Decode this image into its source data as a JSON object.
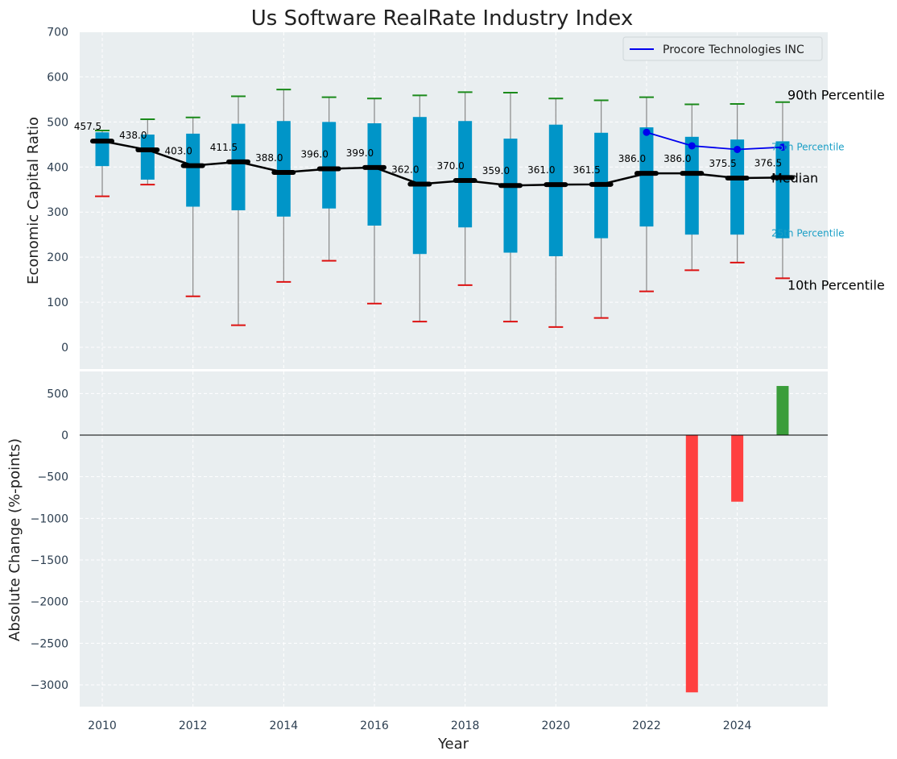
{
  "chart_data": [
    {
      "type": "box",
      "title": "Us Software RealRate Industry Index",
      "ylabel": "Economic Capital Ratio",
      "ylim": [
        -50,
        700
      ],
      "yticks": [
        0,
        100,
        200,
        300,
        400,
        500,
        600,
        700
      ],
      "grid": true,
      "legend": {
        "placement": "top-right",
        "entries": [
          "Procore Technologies INC"
        ]
      },
      "years": [
        2010,
        2011,
        2012,
        2013,
        2014,
        2015,
        2016,
        2017,
        2018,
        2019,
        2020,
        2021,
        2022,
        2023,
        2024,
        2025
      ],
      "p10": [
        335,
        361,
        113,
        49,
        145,
        192,
        97,
        57,
        138,
        57,
        45,
        65,
        124,
        171,
        188,
        153
      ],
      "q1": [
        402,
        372,
        312,
        304,
        290,
        308,
        270,
        207,
        266,
        210,
        202,
        242,
        268,
        250,
        250,
        242
      ],
      "median": [
        457.5,
        438.0,
        403.0,
        411.5,
        388.0,
        396.0,
        399.0,
        362.0,
        370.0,
        359.0,
        361.0,
        361.5,
        386.0,
        386.0,
        375.5,
        376.5
      ],
      "median_labels": [
        "457.5",
        "438.0",
        "403.0",
        "411.5",
        "388.0",
        "396.0",
        "399.0",
        "362.0",
        "370.0",
        "359.0",
        "361.0",
        "361.5",
        "386.0",
        "386.0",
        "375.5",
        "376.5"
      ],
      "q3": [
        477,
        472,
        474,
        496,
        502,
        500,
        497,
        511,
        502,
        463,
        494,
        476,
        488,
        467,
        461,
        457
      ],
      "p90": [
        481,
        506,
        510,
        557,
        572,
        555,
        552,
        559,
        566,
        565,
        552,
        548,
        555,
        539,
        540,
        544
      ],
      "company_series": {
        "name": "Procore Technologies INC",
        "x": [
          2022,
          2023,
          2024,
          2025
        ],
        "y": [
          477,
          447,
          439,
          444
        ]
      },
      "annotations": {
        "p90": "90th Percentile",
        "q3": "75th Percentile",
        "median": "Median",
        "q1": "25th Percentile",
        "p10": "10th Percentile"
      }
    },
    {
      "type": "bar",
      "xlabel": "Year",
      "ylabel": "Absolute Change (%-points)",
      "ylim": [
        -3250,
        800
      ],
      "yticks": [
        -3000,
        -2500,
        -2000,
        -1500,
        -1000,
        -500,
        0,
        500
      ],
      "ytick_labels": [
        "−3000",
        "−2500",
        "−2000",
        "−1500",
        "−1000",
        "−500",
        "0",
        "500"
      ],
      "xticks": [
        2010,
        2012,
        2014,
        2016,
        2018,
        2020,
        2022,
        2024
      ],
      "x": [
        2023,
        2024,
        2025
      ],
      "values": [
        -3090,
        -800,
        590
      ],
      "grid": true
    }
  ],
  "colors": {
    "background": "#e9eef0",
    "grid": "#ffffff",
    "box": "#0095c8",
    "median": "#000000",
    "whisker": "#888888",
    "p90_cap": "#1a8a1a",
    "p10_cap": "#dd1111",
    "company": "#0000ee",
    "positive": "#3a9d3a",
    "negative": "#ff4040",
    "pct_small": "#1a9fc6"
  }
}
